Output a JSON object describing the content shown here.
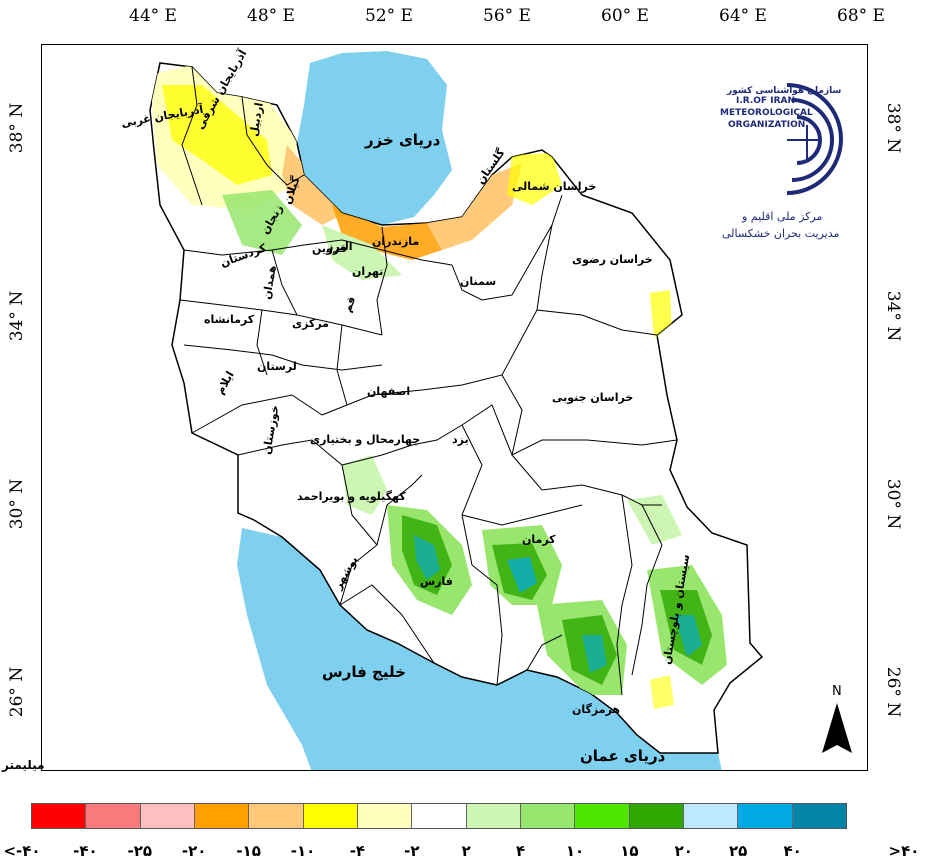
{
  "map": {
    "longitude_ticks": [
      "44° E",
      "48° E",
      "52° E",
      "56° E",
      "60° E",
      "64° E",
      "68° E"
    ],
    "latitude_ticks": [
      "38° N",
      "34° N",
      "30° N",
      "26° N"
    ],
    "north_arrow_label": "N",
    "unit_label": "میلیمتر",
    "seas": {
      "caspian": "دریای خزر",
      "persian_gulf": "خلیج فارس",
      "oman_sea": "دریای عمان"
    },
    "provinces": [
      "آذربایجان غربی",
      "آذربایجان شرقی",
      "اردبیل",
      "گیلان",
      "مازندران",
      "گلستان",
      "خراسان شمالی",
      "خراسان رضوی",
      "سمنان",
      "تهران",
      "البرز",
      "قزوین",
      "زنجان",
      "کردستان",
      "همدان",
      "کرمانشاه",
      "مرکزی",
      "قم",
      "لرستان",
      "ایلام",
      "اصفهان",
      "خراسان جنوبی",
      "یزد",
      "چهارمحال و بختیاری",
      "خوزستان",
      "کهگیلویه و بویراحمد",
      "فارس",
      "کرمان",
      "سیستان و بلوچستان",
      "بوشهر",
      "هرمزگان"
    ]
  },
  "logo": {
    "org_fa_small": "سازمان هواشناسی کشور",
    "org_en_line1": "I.R.OF IRAN",
    "org_en_line2": "METEOROLOGICAL",
    "org_en_line3": "ORGANIZATION",
    "center_line1": "مرکز ملی اقلیم و",
    "center_line2": "مدیریت بحران خشکسالی",
    "icon": "imo-logo-icon"
  },
  "legend": {
    "colors": [
      "#ff0000",
      "#fa7a7a",
      "#ffbfbf",
      "#ff9f00",
      "#ffca7a",
      "#ffff00",
      "#ffffbe",
      "#ffffff",
      "#cdf5b4",
      "#98e66e",
      "#4ce600",
      "#2ea800",
      "#bee8ff",
      "#00a8e6",
      "#0084a8"
    ],
    "labels": [
      "<-۴۰",
      "-۴۰",
      "-۲۵",
      "-۲۰",
      "-۱۵",
      "-۱۰",
      "-۴",
      "-۲",
      "۲",
      "۴",
      "۱۰",
      "۱۵",
      "۲۰",
      "۲۵",
      "۴۰",
      ">۴۰"
    ]
  }
}
